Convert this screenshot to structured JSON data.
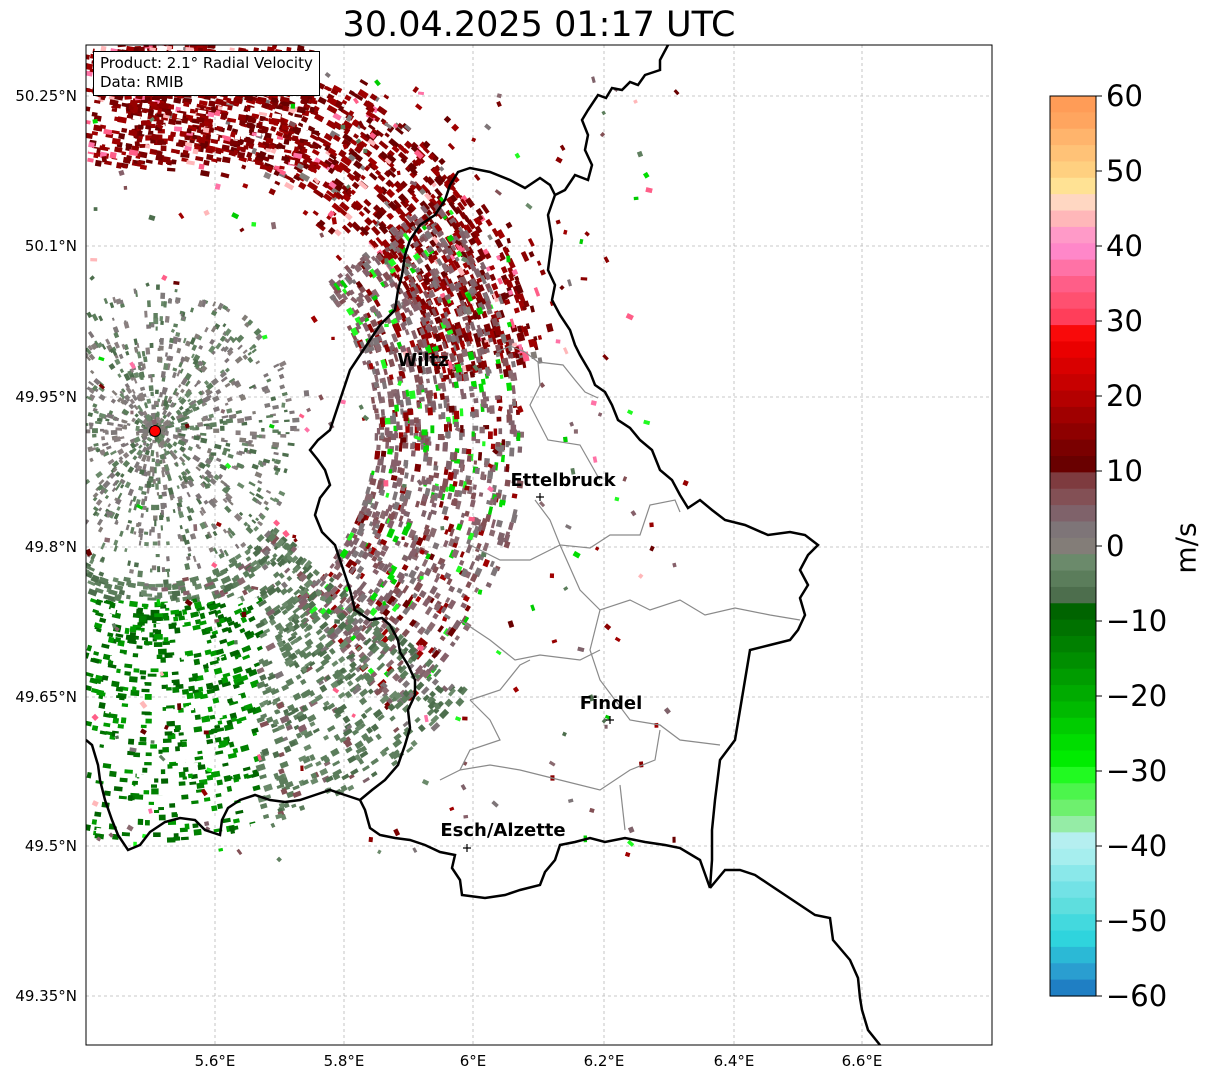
{
  "title": "30.04.2025 01:17 UTC",
  "info": {
    "product": "Product: 2.1° Radial Velocity",
    "data": "Data: RMIB"
  },
  "lat_labels": [
    "50.25°N",
    "50.1°N",
    "49.95°N",
    "49.8°N",
    "49.65°N",
    "49.5°N",
    "49.35°N"
  ],
  "lon_labels": [
    "5.6°E",
    "5.8°E",
    "6°E",
    "6.2°E",
    "6.4°E",
    "6.6°E"
  ],
  "places": [
    {
      "name": "Wiltz"
    },
    {
      "name": "Ettelbruck"
    },
    {
      "name": "Findel"
    },
    {
      "name": "Esch/Alzette"
    }
  ],
  "radar_site": {
    "color": "#ff0000"
  },
  "colorbar": {
    "label": "m/s",
    "ticks": [
      "60",
      "50",
      "40",
      "30",
      "20",
      "10",
      "0",
      "−10",
      "−20",
      "−30",
      "−40",
      "−50",
      "−60"
    ],
    "colors": [
      "#ff9c57",
      "#ffa55f",
      "#ffb46c",
      "#ffc277",
      "#ffd080",
      "#ffe294",
      "#ffd7c2",
      "#ffb7b9",
      "#ff9ac8",
      "#ff87c9",
      "#ff72a6",
      "#ff5e88",
      "#ff5070",
      "#ff3e5a",
      "#f90a0a",
      "#ea0000",
      "#d90000",
      "#c80000",
      "#b40000",
      "#a00000",
      "#8e0000",
      "#7a0000",
      "#690000",
      "#7e3b3f",
      "#835055",
      "#7f626a",
      "#7e7578",
      "#837d78",
      "#6b8a6b",
      "#5b7d5b",
      "#4d6e4d",
      "#006400",
      "#007200",
      "#008000",
      "#008e00",
      "#009c00",
      "#00ab00",
      "#00ba00",
      "#00cc00",
      "#00dd00",
      "#00ec00",
      "#21fa21",
      "#4cf54c",
      "#6ef06e",
      "#95eca6",
      "#b5eff0",
      "#a6eeee",
      "#8ae8ea",
      "#72e2e6",
      "#5edede",
      "#43d9de",
      "#2fd4dd",
      "#2bb9d6",
      "#2a9ed0",
      "#1f7fc4"
    ]
  }
}
